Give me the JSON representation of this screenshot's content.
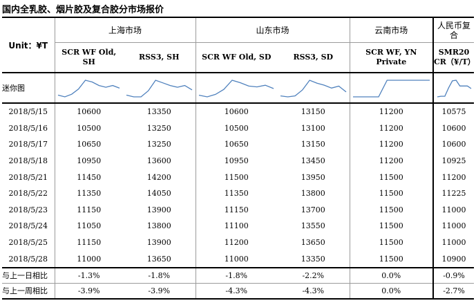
{
  "title": "国内全乳胶、烟片胶及复合胶分市场报价",
  "unit_label": "Unit：¥T",
  "markets": [
    "上海市场",
    "山东市场",
    "云南市场",
    "人民币复合"
  ],
  "products": [
    "SCR WF Old, SH",
    "RSS3, SH",
    "SCR WF Old, SD",
    "RSS3, SD",
    "SCR WF, YN Private",
    "SMR20 CR（¥/T）"
  ],
  "sparkline_label": "迷你图",
  "dates": [
    "2018/5/15",
    "2018/5/16",
    "2018/5/17",
    "2018/5/18",
    "2018/5/21",
    "2018/5/22",
    "2018/5/23",
    "2018/5/24",
    "2018/5/25",
    "2018/5/28"
  ],
  "rows": [
    [
      "10600",
      "13350",
      "10600",
      "13150",
      "11200",
      "10575"
    ],
    [
      "10500",
      "13250",
      "10500",
      "13100",
      "11200",
      "10600"
    ],
    [
      "10650",
      "13250",
      "10650",
      "13150",
      "11200",
      "10600"
    ],
    [
      "10950",
      "13600",
      "10950",
      "13450",
      "11200",
      "10925"
    ],
    [
      "11450",
      "14200",
      "11500",
      "13950",
      "11500",
      "11200"
    ],
    [
      "11350",
      "14050",
      "11350",
      "13800",
      "11500",
      "11225"
    ],
    [
      "11150",
      "13900",
      "11150",
      "13700",
      "11500",
      "11000"
    ],
    [
      "11050",
      "13800",
      "11100",
      "13550",
      "11500",
      "11000"
    ],
    [
      "11150",
      "13900",
      "11200",
      "13650",
      "11500",
      "11000"
    ],
    [
      "11000",
      "13650",
      "11000",
      "13350",
      "11500",
      "10900"
    ]
  ],
  "comparisons": [
    {
      "label": "与上一日相比",
      "values": [
        "-1.3%",
        "-1.8%",
        "-1.8%",
        "-2.2%",
        "0.0%",
        "-0.9%"
      ]
    },
    {
      "label": "与上一周相比",
      "values": [
        "-3.9%",
        "-3.9%",
        "-4.3%",
        "-4.3%",
        "0.0%",
        "-2.7%"
      ]
    }
  ],
  "colors": {
    "sparkline": "#4f81bd"
  }
}
